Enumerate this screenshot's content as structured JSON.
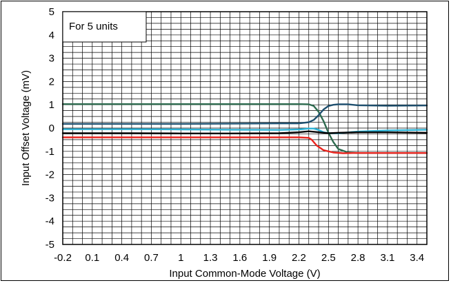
{
  "chart_data": {
    "type": "line",
    "title": "",
    "xlabel": "Input Common-Mode Voltage (V)",
    "ylabel": "Input Offset Voltage (mV)",
    "annotation": "For 5 units",
    "xlim": [
      -0.2,
      3.5
    ],
    "ylim": [
      -5,
      5
    ],
    "x_ticks": [
      "-0.2",
      "0.1",
      "0.4",
      "0.7",
      "1",
      "1.3",
      "1.6",
      "1.9",
      "2.2",
      "2.5",
      "2.8",
      "3.1",
      "3.4"
    ],
    "y_ticks": [
      "5",
      "4",
      "3",
      "2",
      "1",
      "0",
      "-1",
      "-2",
      "-3",
      "-4",
      "-5"
    ],
    "grid": true,
    "series": [
      {
        "color": "#2e6b4f",
        "x": [
          -0.2,
          0.5,
          1.0,
          1.5,
          2.0,
          2.2,
          2.3,
          2.35,
          2.4,
          2.45,
          2.5,
          2.55,
          2.6,
          2.7,
          2.8,
          3.1,
          3.5
        ],
        "y": [
          1.03,
          1.03,
          1.03,
          1.03,
          1.03,
          1.03,
          1.02,
          0.95,
          0.7,
          0.3,
          -0.2,
          -0.6,
          -0.9,
          -1.05,
          -1.07,
          -1.07,
          -1.07
        ]
      },
      {
        "color": "#1e4f6e",
        "x": [
          -0.2,
          0.5,
          1.0,
          1.5,
          2.0,
          2.2,
          2.3,
          2.35,
          2.4,
          2.45,
          2.5,
          2.55,
          2.6,
          2.7,
          2.8,
          3.1,
          3.5
        ],
        "y": [
          0.18,
          0.18,
          0.18,
          0.19,
          0.2,
          0.2,
          0.25,
          0.35,
          0.55,
          0.8,
          0.95,
          1.0,
          1.02,
          1.02,
          0.98,
          0.96,
          0.97
        ]
      },
      {
        "color": "#2bb3d6",
        "x": [
          -0.2,
          0.5,
          1.0,
          1.5,
          2.0,
          2.2,
          2.3,
          2.35,
          2.4,
          2.45,
          2.5,
          2.6,
          2.8,
          3.1,
          3.5
        ],
        "y": [
          -0.05,
          -0.05,
          -0.06,
          -0.07,
          -0.08,
          -0.06,
          -0.02,
          -0.02,
          -0.08,
          -0.18,
          -0.22,
          -0.22,
          -0.15,
          -0.1,
          -0.07
        ]
      },
      {
        "color": "#000000",
        "x": [
          -0.2,
          0.5,
          1.0,
          1.5,
          2.0,
          2.2,
          2.3,
          2.4,
          2.5,
          2.6,
          2.8,
          3.1,
          3.5
        ],
        "y": [
          -0.22,
          -0.22,
          -0.23,
          -0.23,
          -0.22,
          -0.18,
          -0.14,
          -0.18,
          -0.22,
          -0.2,
          -0.18,
          -0.18,
          -0.2
        ]
      },
      {
        "color": "#e8231d",
        "x": [
          -0.2,
          0.5,
          1.0,
          1.5,
          2.0,
          2.2,
          2.3,
          2.33,
          2.38,
          2.45,
          2.55,
          2.65,
          2.75,
          3.1,
          3.5
        ],
        "y": [
          -0.4,
          -0.4,
          -0.4,
          -0.4,
          -0.4,
          -0.4,
          -0.42,
          -0.5,
          -0.75,
          -0.95,
          -1.05,
          -1.08,
          -1.07,
          -1.07,
          -1.07
        ]
      }
    ]
  }
}
